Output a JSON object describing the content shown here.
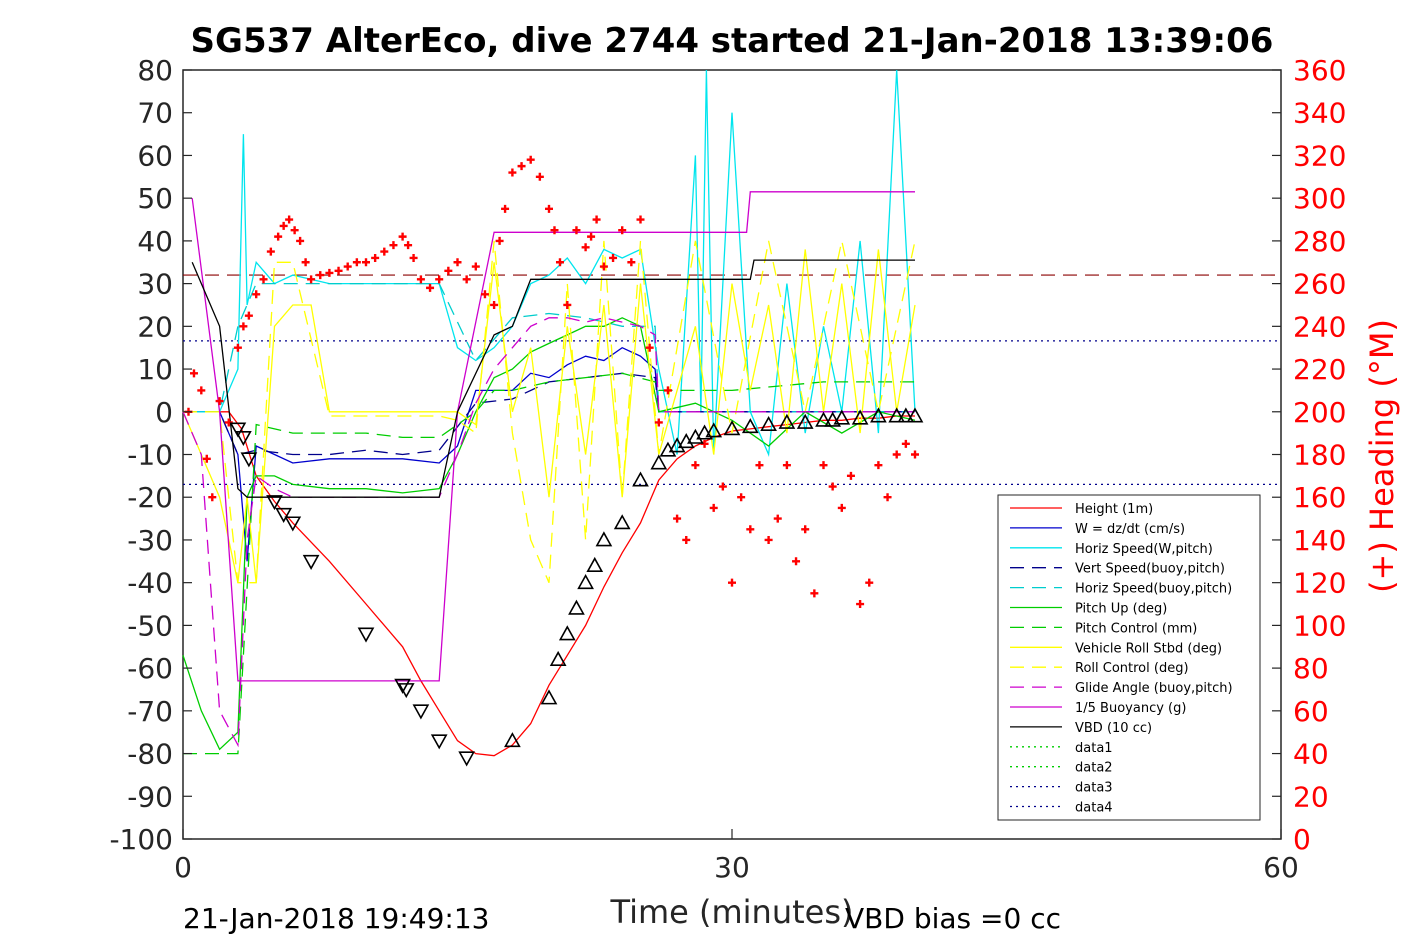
{
  "chart_data": {
    "type": "line",
    "title": "SG537 AlterEco, dive 2744 started 21-Jan-2018 13:39:06",
    "xlabel": "Time (minutes)",
    "ylabel_right": "(+) Heading (°M)",
    "xlim": [
      0,
      60
    ],
    "ylim": [
      -100,
      80
    ],
    "ylim_right": [
      0,
      360
    ],
    "x_ticks": [
      0,
      30,
      60
    ],
    "y_ticks": [
      80,
      70,
      60,
      50,
      40,
      30,
      20,
      10,
      0,
      -10,
      -20,
      -30,
      -40,
      -50,
      -60,
      -70,
      -80,
      -90,
      -100
    ],
    "y_right_ticks": [
      360,
      340,
      320,
      300,
      280,
      260,
      240,
      220,
      200,
      180,
      160,
      140,
      120,
      100,
      80,
      60,
      40,
      20,
      0
    ],
    "grid": false,
    "legend_placement": "bottom-right",
    "footer_left": "21-Jan-2018 19:49:13",
    "footer_right": "VBD bias =0 cc",
    "reference_lines": [
      {
        "y": 32,
        "color": "#8b0000",
        "style": "dashed"
      },
      {
        "y": 16.6,
        "color": "#00008b",
        "style": "dotted"
      },
      {
        "y": -17,
        "color": "#00008b",
        "style": "dotted"
      }
    ],
    "series": [
      {
        "name": "Height (1m)",
        "color": "#ff0000",
        "style": "solid",
        "x": [
          0.5,
          1.5,
          2.5,
          3.2,
          4,
          5,
          6,
          8,
          10,
          12,
          13,
          14,
          15,
          16,
          17,
          18,
          19,
          20,
          21,
          22,
          23,
          24,
          25,
          26,
          27,
          28,
          29,
          30,
          31,
          32,
          33,
          34,
          35,
          36,
          37,
          38,
          39,
          40
        ],
        "y": [
          0,
          0,
          0,
          -4,
          -15,
          -21,
          -26,
          -35,
          -45,
          -55,
          -63,
          -70,
          -77,
          -80,
          -80.5,
          -78,
          -73,
          -64,
          -57,
          -50,
          -41,
          -33,
          -26,
          -16,
          -11,
          -8,
          -6,
          -4.5,
          -4,
          -3.5,
          -3,
          -2.5,
          -2,
          -2,
          -1.5,
          -1.5,
          -1,
          -1
        ]
      },
      {
        "name": "W = dz/dt (cm/s)",
        "color": "#0000cd",
        "style": "solid",
        "x": [
          0,
          2,
          3,
          3.5,
          4,
          5,
          6,
          8,
          10,
          12,
          14,
          15,
          16,
          17,
          18,
          19,
          20,
          21,
          22,
          23,
          24,
          25,
          25.8,
          26,
          28,
          30,
          32,
          34,
          36,
          38,
          40
        ],
        "y": [
          0,
          0,
          -10,
          -35,
          -8,
          -10,
          -12,
          -11,
          -11,
          -11,
          -12,
          -8,
          5,
          5,
          5,
          9,
          8,
          11,
          13,
          12,
          15,
          13,
          10,
          0,
          0,
          0,
          0,
          0,
          0,
          0,
          0
        ]
      },
      {
        "name": "Horiz Speed(W,pitch)",
        "color": "#00e5ee",
        "style": "solid",
        "x": [
          0,
          2,
          3,
          3.3,
          3.5,
          4,
          5,
          6,
          8,
          10,
          12,
          14,
          15,
          16,
          17,
          18,
          19,
          20,
          21,
          22,
          23,
          24,
          25,
          26,
          27,
          28,
          28.3,
          28.6,
          29,
          30,
          31,
          32,
          33,
          34,
          35,
          36,
          37,
          38,
          39,
          40
        ],
        "y": [
          0,
          0,
          10,
          65,
          25,
          35,
          30,
          32,
          30,
          30,
          30,
          30,
          15,
          12,
          15,
          20,
          30,
          32,
          36,
          30,
          38,
          36,
          38,
          10,
          -10,
          60,
          0,
          80,
          -10,
          70,
          0,
          -10,
          30,
          -5,
          20,
          0,
          40,
          -5,
          80,
          0
        ]
      },
      {
        "name": "Vert Speed(buoy,pitch)",
        "color": "#00008b",
        "style": "dashed",
        "x": [
          0,
          2,
          3,
          4,
          6,
          8,
          10,
          12,
          14,
          16,
          18,
          20,
          22,
          24,
          25.8,
          26,
          30,
          35,
          40
        ],
        "y": [
          0,
          0,
          -10,
          -9,
          -10,
          -10,
          -9,
          -10,
          -9,
          2,
          3,
          7,
          8,
          9,
          8,
          0,
          0,
          0,
          0
        ]
      },
      {
        "name": "Horiz Speed(buoy,pitch)",
        "color": "#00cdcd",
        "style": "dashed",
        "x": [
          0,
          2,
          3,
          4,
          6,
          8,
          10,
          12,
          14,
          16,
          18,
          20,
          22,
          24,
          25.8,
          26,
          30,
          35,
          40
        ],
        "y": [
          0,
          0,
          20,
          30,
          30,
          30,
          30,
          30,
          30,
          12,
          22,
          23,
          22,
          20,
          20,
          0,
          0,
          0,
          0
        ]
      },
      {
        "name": "Pitch Up (deg)",
        "color": "#00cd00",
        "style": "solid",
        "x": [
          0,
          1,
          2,
          3,
          3.5,
          4,
          5,
          6,
          8,
          10,
          12,
          14,
          15,
          16,
          17,
          18,
          19,
          20,
          21,
          22,
          23,
          24,
          25,
          26,
          28,
          30,
          32,
          34,
          36,
          38,
          40
        ],
        "y": [
          -57,
          -70,
          -79,
          -75,
          -20,
          -15,
          -15,
          -17,
          -18,
          -18,
          -19,
          -18,
          -10,
          0,
          8,
          10,
          14,
          16,
          18,
          20,
          20,
          22,
          20,
          0,
          2,
          -2,
          -8,
          0,
          -5,
          0,
          -2
        ]
      },
      {
        "name": "Pitch Control (mm)",
        "color": "#00cd00",
        "style": "dashed",
        "x": [
          0,
          2,
          3,
          4,
          6,
          8,
          10,
          12,
          14,
          15,
          16,
          17,
          18,
          20,
          22,
          24,
          25.8,
          26,
          30,
          35,
          40
        ],
        "y": [
          -80,
          -80,
          -80,
          -3,
          -5,
          -5,
          -5,
          -6,
          -6,
          -3,
          0,
          5,
          5,
          7,
          8,
          9,
          7,
          5,
          5,
          7,
          7
        ]
      },
      {
        "name": "Vehicle Roll Stbd (deg)",
        "color": "#ffff00",
        "style": "solid",
        "x": [
          0,
          1,
          2,
          3,
          3.5,
          4,
          5,
          6,
          7,
          8,
          10,
          12,
          14,
          15,
          16,
          17,
          18,
          19,
          20,
          21,
          22,
          23,
          24,
          25,
          26,
          27,
          28,
          29,
          30,
          31,
          32,
          33,
          34,
          35,
          36,
          37,
          38,
          39,
          40
        ],
        "y": [
          0,
          -10,
          -20,
          -40,
          -20,
          -40,
          20,
          25,
          25,
          0,
          0,
          0,
          0,
          0,
          -3,
          35,
          0,
          15,
          -20,
          20,
          -10,
          25,
          -20,
          30,
          -10,
          5,
          20,
          -10,
          30,
          5,
          25,
          -5,
          38,
          0,
          30,
          -5,
          38,
          0,
          25
        ]
      },
      {
        "name": "Roll Control (deg)",
        "color": "#ffff00",
        "style": "dashed",
        "x": [
          0,
          2,
          3,
          4,
          5,
          6,
          8,
          10,
          12,
          14,
          15,
          16,
          17,
          18,
          19,
          20,
          21,
          22,
          23,
          24,
          25,
          26,
          28,
          30,
          32,
          34,
          36,
          38,
          40
        ],
        "y": [
          0,
          0,
          -40,
          -40,
          35,
          35,
          -1,
          -1,
          -1,
          -1,
          -2,
          -5,
          40,
          -5,
          -30,
          -40,
          30,
          -30,
          40,
          -20,
          40,
          -10,
          40,
          -5,
          40,
          0,
          40,
          0,
          40
        ]
      },
      {
        "name": "Glide Angle (buoy,pitch)",
        "color": "#cd00cd",
        "style": "dashed",
        "x": [
          0,
          1,
          1.5,
          2,
          3,
          3.5,
          4,
          5,
          6,
          8,
          10,
          12,
          14,
          15,
          16,
          17,
          18,
          19,
          20,
          21,
          22,
          23,
          24,
          25,
          25.8,
          26,
          30,
          35,
          40
        ],
        "y": [
          0,
          -10,
          -40,
          -70,
          -78,
          -30,
          -15,
          -18,
          -20,
          -20,
          -20,
          -20,
          -20,
          -10,
          2,
          10,
          15,
          20,
          22,
          22,
          21,
          22,
          21,
          20,
          18,
          0,
          0,
          0,
          0
        ]
      },
      {
        "name": "1/5 Buoyancy (g)",
        "color": "#cd00cd",
        "style": "solid",
        "x": [
          0.5,
          2,
          3,
          3.5,
          4,
          14,
          15,
          17,
          19,
          30.8,
          31,
          40
        ],
        "y": [
          50,
          0,
          -63,
          -63,
          -63,
          -63,
          0,
          42,
          42,
          42,
          51.5,
          51.5
        ]
      },
      {
        "name": "VBD (10 cc)",
        "color": "#000000",
        "style": "solid",
        "x": [
          0.5,
          2,
          3,
          3.5,
          4,
          14,
          15,
          17,
          18,
          19,
          31,
          31.2,
          40
        ],
        "y": [
          35,
          20,
          -18,
          -20,
          -20,
          -20,
          0,
          18,
          20,
          31,
          31,
          35.5,
          35.5
        ]
      },
      {
        "name": "data1",
        "color": "#00cd00",
        "style": "dotted",
        "x": [],
        "y": []
      },
      {
        "name": "data2",
        "color": "#00cd00",
        "style": "dotted",
        "x": [],
        "y": []
      },
      {
        "name": "data3",
        "color": "#00008b",
        "style": "dotted",
        "x": [],
        "y": []
      },
      {
        "name": "data4",
        "color": "#00008b",
        "style": "dotted",
        "x": [],
        "y": []
      }
    ],
    "triangle_markers": {
      "color": "#000000",
      "x": [
        3,
        3.3,
        3.6,
        5,
        5.5,
        6,
        7,
        10,
        12,
        12.2,
        13,
        14,
        15.5,
        18,
        20,
        20.5,
        21,
        21.5,
        22,
        22.5,
        23,
        24,
        25,
        26,
        26.5,
        27,
        27.5,
        28,
        28.5,
        29,
        30,
        31,
        32,
        33,
        34,
        35,
        35.5,
        36,
        37,
        38,
        39,
        39.5,
        40
      ],
      "y": [
        -4,
        -6,
        -11,
        -21,
        -24,
        -26,
        -35,
        -52,
        -64,
        -65,
        -70,
        -77,
        -81,
        -77,
        -67,
        -58,
        -52,
        -46,
        -40,
        -36,
        -30,
        -26,
        -16,
        -12,
        -9,
        -8,
        -7,
        -6,
        -5,
        -4.5,
        -4,
        -3.5,
        -3,
        -2.5,
        -2.5,
        -2,
        -2,
        -1.5,
        -1.5,
        -1,
        -1,
        -1,
        -1
      ]
    },
    "heading_markers": {
      "name": "Heading",
      "color": "#ff0000",
      "x": [
        0.3,
        0.6,
        1,
        1.3,
        1.6,
        2,
        2.5,
        3,
        3.3,
        3.6,
        4,
        4.4,
        4.8,
        5.2,
        5.5,
        5.8,
        6.1,
        6.4,
        6.7,
        7,
        7.5,
        8,
        8.5,
        9,
        9.5,
        10,
        10.5,
        11,
        11.5,
        12,
        12.3,
        12.6,
        13,
        13.5,
        14,
        14.5,
        15,
        15.5,
        16,
        16.5,
        17,
        17.3,
        17.6,
        18,
        18.5,
        19,
        19.5,
        20,
        20.3,
        20.6,
        21,
        21.5,
        22,
        22.3,
        22.6,
        23,
        23.5,
        24,
        24.5,
        25,
        25.5,
        26,
        26.5,
        27,
        27.5,
        28,
        28.5,
        29,
        29.5,
        30,
        30.5,
        31,
        31.5,
        32,
        32.5,
        33,
        33.5,
        34,
        34.5,
        35,
        35.5,
        36,
        36.5,
        37,
        37.5,
        38,
        38.5,
        39,
        39.5,
        40
      ],
      "y": [
        200,
        218,
        210,
        178,
        160,
        205,
        195,
        230,
        240,
        245,
        255,
        262,
        275,
        282,
        287,
        290,
        285,
        280,
        270,
        262,
        264,
        265,
        266,
        268,
        270,
        270,
        272,
        275,
        278,
        282,
        278,
        272,
        262,
        258,
        262,
        266,
        270,
        262,
        268,
        255,
        250,
        280,
        295,
        312,
        315,
        318,
        310,
        295,
        285,
        270,
        250,
        285,
        277,
        282,
        290,
        268,
        272,
        285,
        270,
        290,
        230,
        195,
        210,
        150,
        140,
        175,
        185,
        155,
        165,
        120,
        160,
        145,
        175,
        140,
        150,
        175,
        130,
        145,
        115,
        175,
        165,
        155,
        170,
        110,
        120,
        175,
        160,
        180,
        185,
        180
      ],
      "axis": "right"
    }
  }
}
